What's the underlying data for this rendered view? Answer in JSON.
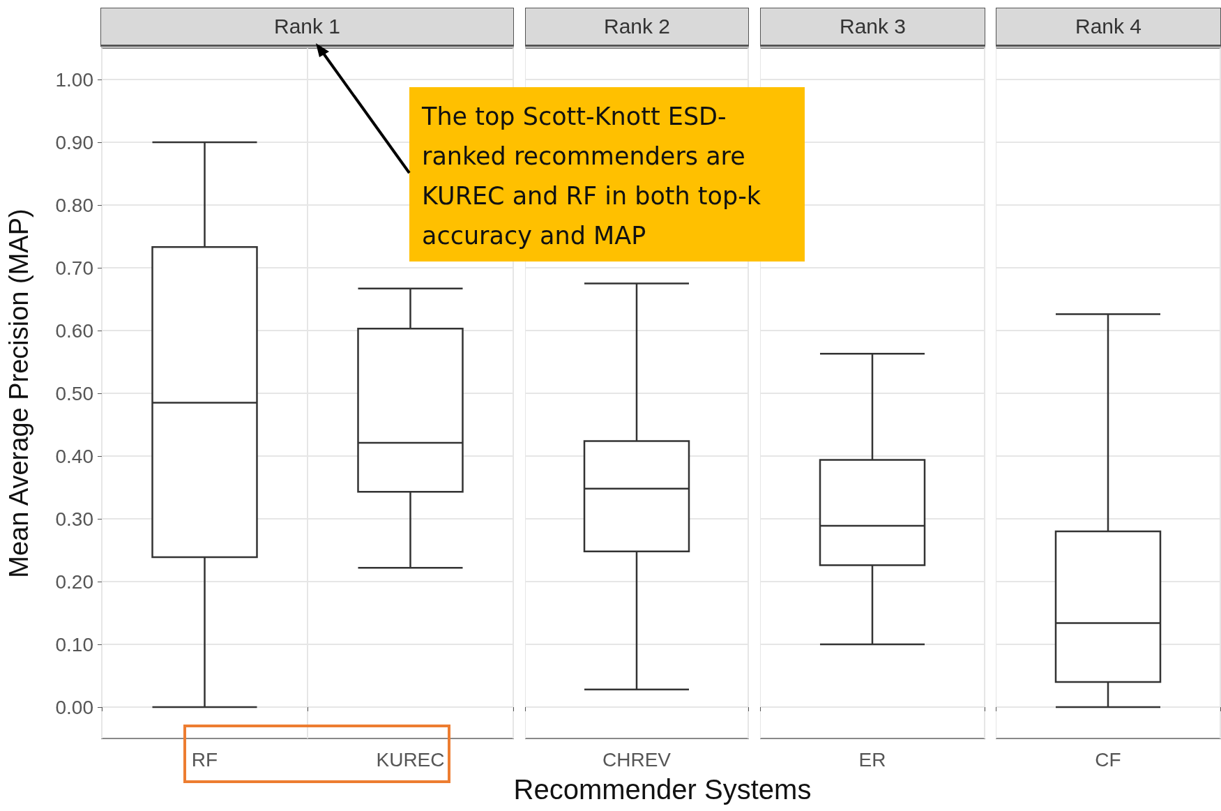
{
  "chart_data": [
    {
      "type": "box",
      "title": "Rank 1",
      "ylabel": "Mean Average Precision (MAP)",
      "xlabel": "Recommender Systems",
      "categories": [
        "RF",
        "KUREC"
      ],
      "boxes": [
        {
          "low": 0.0,
          "q1": 0.239,
          "median": 0.485,
          "q3": 0.733,
          "high": 0.9
        },
        {
          "low": 0.222,
          "q1": 0.343,
          "median": 0.421,
          "q3": 0.603,
          "high": 0.667
        }
      ],
      "ylim": [
        -0.05,
        1.05
      ],
      "yticks": [
        {
          "value": 0,
          "label": "0.00"
        },
        {
          "value": 0.1,
          "label": "0.10"
        },
        {
          "value": 0.2,
          "label": "0.20"
        },
        {
          "value": 0.3,
          "label": "0.30"
        },
        {
          "value": 0.4,
          "label": "0.40"
        },
        {
          "value": 0.5,
          "label": "0.50"
        },
        {
          "value": 0.6,
          "label": "0.60"
        },
        {
          "value": 0.7,
          "label": "0.70"
        },
        {
          "value": 0.8,
          "label": "0.80"
        },
        {
          "value": 0.9,
          "label": "0.90"
        },
        {
          "value": 1,
          "label": "1.00"
        }
      ],
      "grid": true,
      "annotations": [
        "The top Scott-Knott ESD-ranked recommenders are KUREC and RF in both top-k accuracy and MAP"
      ]
    },
    {
      "type": "box",
      "title": "Rank 2",
      "categories": [
        "CHREV"
      ],
      "boxes": [
        {
          "low": 0.028,
          "q1": 0.248,
          "median": 0.348,
          "q3": 0.424,
          "high": 0.675
        }
      ],
      "ylim": [
        -0.05,
        1.05
      ],
      "grid": true,
      "tick_labels": "x"
    },
    {
      "type": "box",
      "title": "Rank 3",
      "categories": [
        "ER"
      ],
      "boxes": [
        {
          "low": 0.1,
          "q1": 0.226,
          "median": 0.289,
          "q3": 0.394,
          "high": 0.563
        }
      ],
      "ylim": [
        -0.05,
        1.05
      ],
      "grid": true,
      "tick_labels": "x"
    },
    {
      "type": "box",
      "title": "Rank 4",
      "categories": [
        "CF"
      ],
      "boxes": [
        {
          "low": 0.0,
          "q1": 0.04,
          "median": 0.134,
          "q3": 0.28,
          "high": 0.626
        }
      ],
      "ylim": [
        -0.05,
        1.05
      ],
      "grid": true,
      "tick_labels": "x"
    }
  ]
}
